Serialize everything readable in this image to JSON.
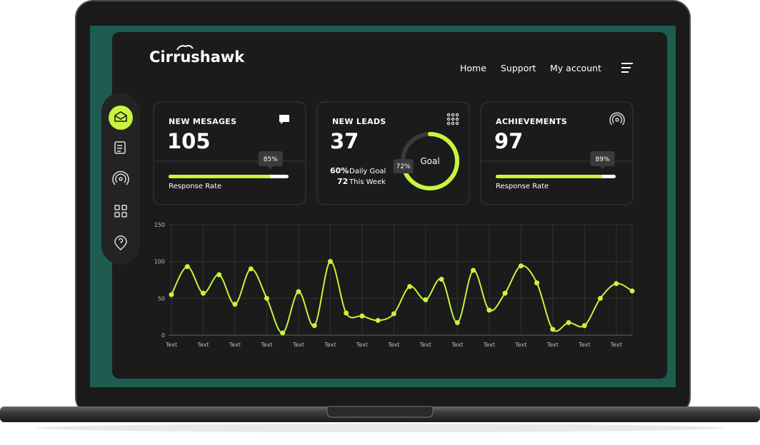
{
  "header": {
    "logo": "Cirrushawk",
    "nav": [
      "Home",
      "Support",
      "My account"
    ]
  },
  "cards": [
    {
      "title": "NEW MESAGES",
      "value": "105",
      "progress": 85,
      "progress_label": "85%",
      "caption": "Response Rate"
    },
    {
      "title": "NEW LEADS",
      "value": "37",
      "daily_pct": "60%",
      "daily_text": "Daily Goal",
      "week_value": "72",
      "week_text": "This Week",
      "goal_text": "Goal",
      "progress": 72,
      "progress_label": "72%"
    },
    {
      "title": "ACHIEVEMENTS",
      "value": "97",
      "progress": 89,
      "progress_label": "89%",
      "caption": "Response Rate"
    }
  ],
  "chart_data": {
    "type": "line",
    "color": "#c8f43c",
    "categories": [
      "Text",
      null,
      "Text",
      null,
      "Text",
      null,
      "Text",
      null,
      "Text",
      null,
      "Text",
      null,
      "Text",
      null,
      "Text",
      null,
      "Text",
      null,
      "Text",
      null,
      "Text",
      null,
      "Text",
      null,
      "Text",
      null,
      "Text",
      null,
      "Text",
      null
    ],
    "values": [
      55,
      93,
      57,
      82,
      42,
      90,
      50,
      3,
      59,
      13,
      100,
      30,
      26,
      20,
      29,
      66,
      48,
      76,
      17,
      88,
      34,
      57,
      94,
      71,
      8,
      17,
      13,
      50,
      70,
      60
    ],
    "ylim": [
      0,
      150
    ],
    "yticks": [
      0,
      50,
      100,
      150
    ],
    "grid": true,
    "smooth": true
  }
}
